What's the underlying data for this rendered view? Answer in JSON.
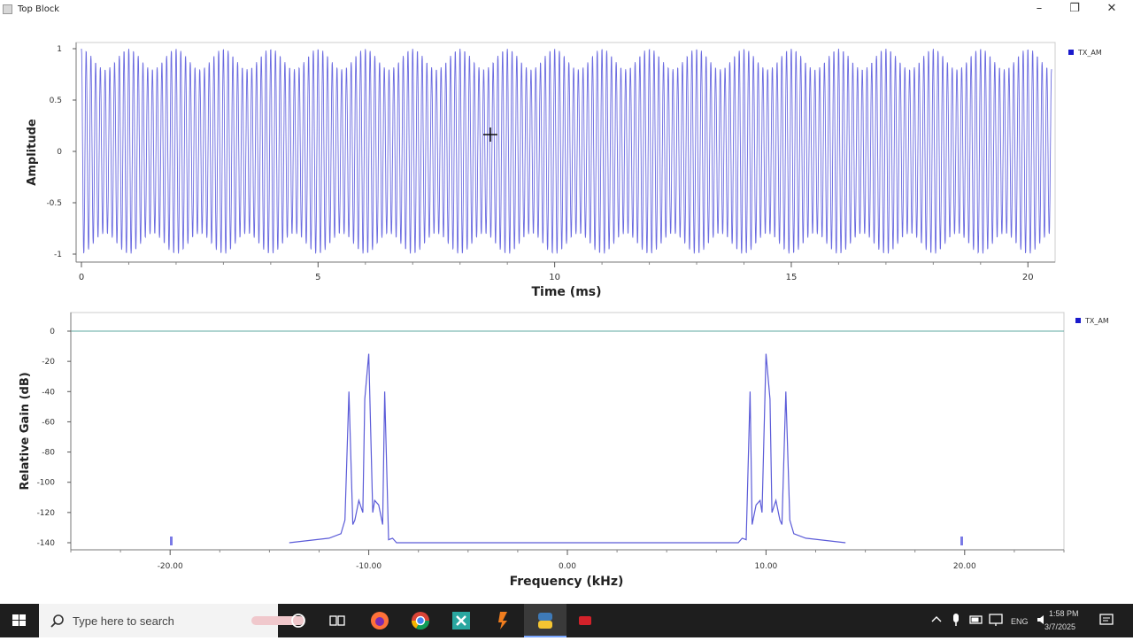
{
  "window": {
    "title": "Top Block"
  },
  "plot_time": {
    "ylabel": "Amplitude",
    "xlabel": "Time (ms)",
    "legend": "TX_AM",
    "yticks": [
      "1",
      "0.5",
      "0",
      "-0.5",
      "-1"
    ],
    "xticks": [
      "0",
      "5",
      "10",
      "15",
      "20"
    ]
  },
  "plot_freq": {
    "ylabel": "Relative Gain (dB)",
    "xlabel": "Frequency (kHz)",
    "legend": "TX_AM",
    "yticks": [
      "0",
      "-20",
      "-40",
      "-60",
      "-80",
      "-100",
      "-120",
      "-140"
    ],
    "xticks": [
      "-20.00",
      "-10.00",
      "0.00",
      "10.00",
      "20.00"
    ]
  },
  "chart_data": [
    {
      "type": "line",
      "title": "",
      "xlabel": "Time (ms)",
      "ylabel": "Amplitude",
      "xlim": [
        0,
        20.5
      ],
      "ylim": [
        -1,
        1
      ],
      "grid": false,
      "legend_position": "right",
      "series": [
        {
          "name": "TX_AM",
          "signal": "AM modulated carrier",
          "carrier_khz": 10,
          "message_khz": 1,
          "envelope_min": 0.8,
          "envelope_max": 1.0
        }
      ]
    },
    {
      "type": "line",
      "title": "",
      "xlabel": "Frequency (kHz)",
      "ylabel": "Relative Gain (dB)",
      "xlim": [
        -25,
        25
      ],
      "ylim": [
        -140,
        0
      ],
      "grid": false,
      "legend_position": "right",
      "series": [
        {
          "name": "TX_AM",
          "x": [
            -14,
            -12,
            -11.4,
            -11.2,
            -11,
            -10.8,
            -10.7,
            -10.5,
            -10.3,
            -10.2,
            -10,
            -9.8,
            -9.7,
            -9.5,
            -9.3,
            -9.2,
            -9,
            -8.8,
            -8.6,
            -8,
            8,
            8.6,
            8.8,
            9,
            9.2,
            9.3,
            9.5,
            9.7,
            9.8,
            10,
            10.2,
            10.3,
            10.5,
            10.7,
            10.8,
            11,
            11.2,
            11.4,
            12,
            14
          ],
          "y": [
            -140,
            -137,
            -134,
            -125,
            -40,
            -128,
            -125,
            -112,
            -120,
            -45,
            -15,
            -120,
            -112,
            -115,
            -128,
            -40,
            -138,
            -137,
            -140,
            -140,
            -140,
            -140,
            -137,
            -138,
            -40,
            -128,
            -115,
            -112,
            -120,
            -15,
            -45,
            -120,
            -112,
            -125,
            -128,
            -40,
            -125,
            -134,
            -137,
            -140
          ]
        }
      ]
    }
  ],
  "taskbar": {
    "search_placeholder": "Type here to search",
    "time": "1:58 PM",
    "date": "3/7/2025",
    "lang": "ENG"
  }
}
